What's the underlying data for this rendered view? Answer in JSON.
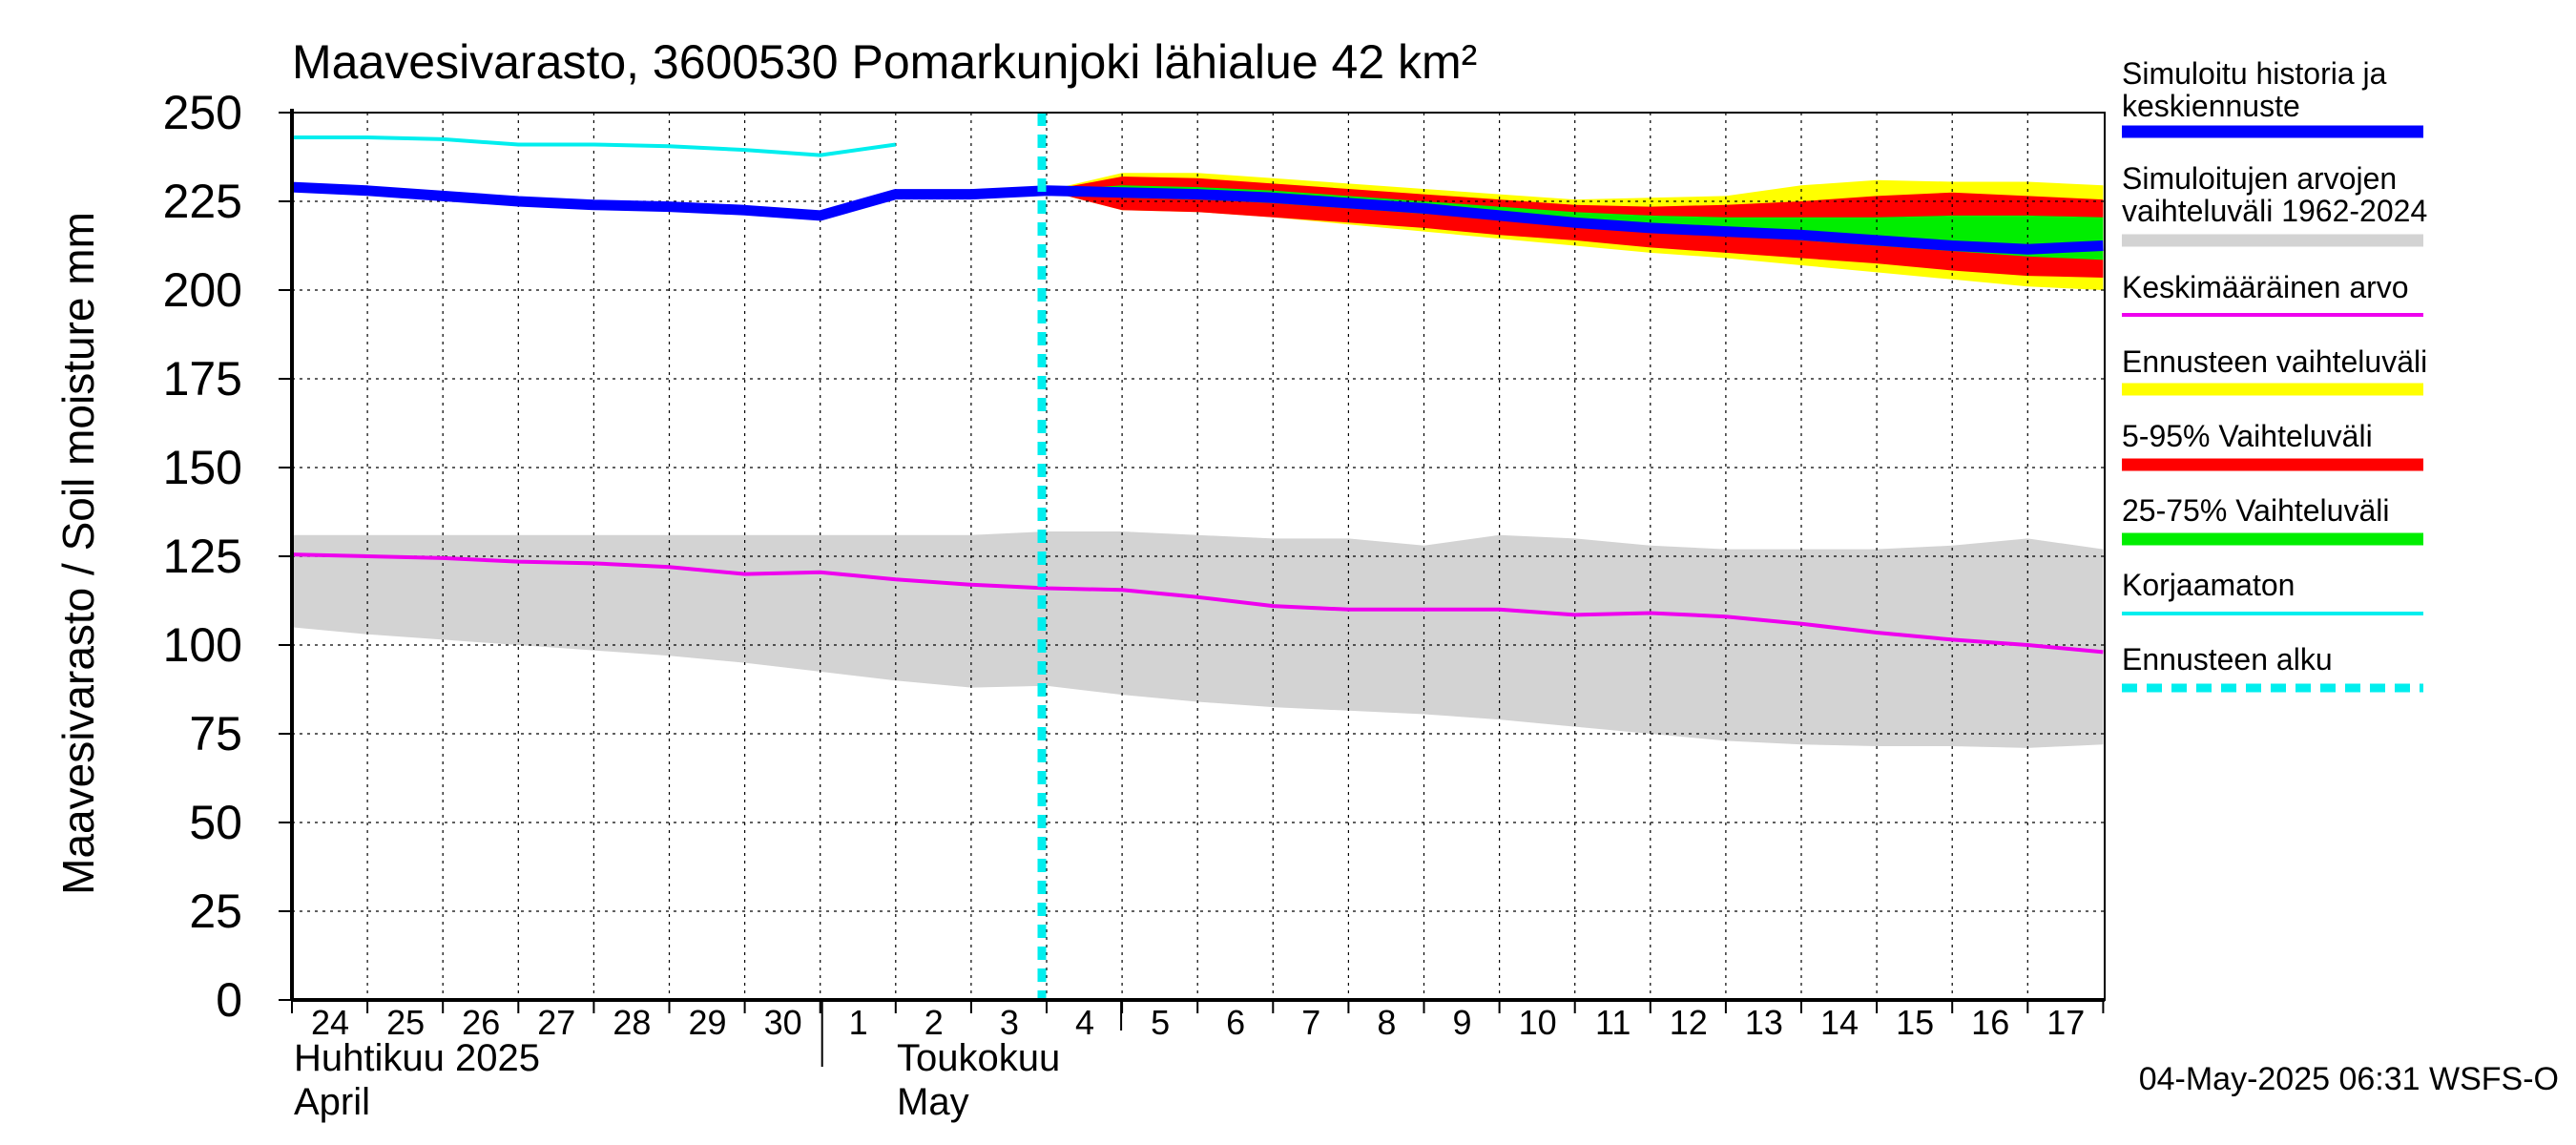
{
  "chart_data": {
    "type": "line",
    "title": "Maavesivarasto, 3600530 Pomarkunjoki lähialue 42 km²",
    "ylabel": "Maavesivarasto / Soil moisture   mm",
    "ylim": [
      0,
      250
    ],
    "yticks": [
      "0",
      "25",
      "50",
      "75",
      "100",
      "125",
      "150",
      "175",
      "200",
      "225",
      "250"
    ],
    "grid": true,
    "legend_position": "right",
    "x_start_day": "2025-04-24",
    "x_end_day": "2025-05-17",
    "xtick_labels": [
      "24",
      "25",
      "26",
      "27",
      "28",
      "29",
      "30",
      "1",
      "2",
      "3",
      "4",
      "5",
      "6",
      "7",
      "8",
      "9",
      "10",
      "11",
      "12",
      "13",
      "14",
      "15",
      "16",
      "17"
    ],
    "month_labels": [
      {
        "fi": "Huhtikuu  2025",
        "en": "April"
      },
      {
        "fi": "Toukokuu",
        "en": "May"
      }
    ],
    "forecast_start": "2025-05-04",
    "footer": "04-May-2025 06:31 WSFS-O",
    "legend": [
      {
        "label": "Simuloitu historia ja keskiennuste",
        "color": "#0000ff",
        "style": "thick"
      },
      {
        "label": "Simuloitujen arvojen vaihteluväli 1962-2024",
        "color": "#d3d3d3",
        "style": "thick"
      },
      {
        "label": "Keskimääräinen arvo",
        "color": "#ee00ee",
        "style": "thin"
      },
      {
        "label": "Ennusteen vaihteluväli",
        "color": "#ffff00",
        "style": "thick"
      },
      {
        "label": "5-95% Vaihteluväli",
        "color": "#ff0000",
        "style": "thick"
      },
      {
        "label": "25-75% Vaihteluväli",
        "color": "#00ee00",
        "style": "thick"
      },
      {
        "label": "Korjaamaton",
        "color": "#00eeee",
        "style": "thin"
      },
      {
        "label": "Ennusteen alku",
        "color": "#00eeee",
        "style": "dashed"
      }
    ],
    "series": [
      {
        "name": "Simuloitu historia ja keskiennuste",
        "color": "#0000ff",
        "x": [
          "2025-04-24",
          "2025-04-25",
          "2025-04-26",
          "2025-04-27",
          "2025-04-28",
          "2025-04-29",
          "2025-04-30",
          "2025-05-01",
          "2025-05-02",
          "2025-05-03",
          "2025-05-04",
          "2025-05-05",
          "2025-05-06",
          "2025-05-07",
          "2025-05-08",
          "2025-05-09",
          "2025-05-10",
          "2025-05-11",
          "2025-05-12",
          "2025-05-13",
          "2025-05-14",
          "2025-05-15",
          "2025-05-16",
          "2025-05-17",
          "2025-05-18"
        ],
        "values": [
          229,
          228,
          226.5,
          225,
          224,
          223.5,
          222.5,
          221,
          227,
          227,
          228,
          227.5,
          227,
          226,
          224.5,
          223,
          221,
          219,
          217.5,
          216.5,
          215.5,
          214,
          212.5,
          211.5,
          212.5
        ]
      },
      {
        "name": "Korjaamaton",
        "color": "#00eeee",
        "x": [
          "2025-04-24",
          "2025-04-25",
          "2025-04-26",
          "2025-04-27",
          "2025-04-28",
          "2025-04-29",
          "2025-04-30",
          "2025-05-01",
          "2025-05-02"
        ],
        "values": [
          243,
          243,
          242.5,
          241,
          241,
          240.5,
          239.5,
          238,
          241
        ]
      },
      {
        "name": "Keskimääräinen arvo",
        "color": "#ee00ee",
        "x": [
          "2025-04-24",
          "2025-04-25",
          "2025-04-26",
          "2025-04-27",
          "2025-04-28",
          "2025-04-29",
          "2025-04-30",
          "2025-05-01",
          "2025-05-02",
          "2025-05-03",
          "2025-05-04",
          "2025-05-05",
          "2025-05-06",
          "2025-05-07",
          "2025-05-08",
          "2025-05-09",
          "2025-05-10",
          "2025-05-11",
          "2025-05-12",
          "2025-05-13",
          "2025-05-14",
          "2025-05-15",
          "2025-05-16",
          "2025-05-17",
          "2025-05-18"
        ],
        "values": [
          125.5,
          125,
          124.5,
          123.5,
          123,
          122,
          120,
          120.5,
          118.5,
          117,
          116,
          115.5,
          113.5,
          111,
          110,
          110,
          110,
          108.5,
          109,
          108,
          106,
          103.5,
          101.5,
          100,
          98
        ]
      }
    ],
    "bands": [
      {
        "name": "Simuloitujen arvojen vaihteluväli 1962-2024",
        "color": "#d3d3d3",
        "x": [
          "2025-04-24",
          "2025-04-25",
          "2025-04-26",
          "2025-04-27",
          "2025-04-28",
          "2025-04-29",
          "2025-04-30",
          "2025-05-01",
          "2025-05-02",
          "2025-05-03",
          "2025-05-04",
          "2025-05-05",
          "2025-05-06",
          "2025-05-07",
          "2025-05-08",
          "2025-05-09",
          "2025-05-10",
          "2025-05-11",
          "2025-05-12",
          "2025-05-13",
          "2025-05-14",
          "2025-05-15",
          "2025-05-16",
          "2025-05-17",
          "2025-05-18"
        ],
        "upper": [
          131,
          131,
          131,
          131,
          131,
          131,
          131,
          131,
          131,
          131,
          132,
          132,
          131,
          130,
          130,
          128,
          131,
          130,
          128,
          127,
          127,
          127,
          128,
          130,
          127
        ],
        "lower": [
          105,
          103,
          101.5,
          100,
          98.5,
          97,
          95,
          92.5,
          90,
          88,
          88.5,
          86,
          84,
          82.5,
          81.5,
          80.5,
          79,
          77,
          75,
          73,
          72,
          71.5,
          71.5,
          71,
          72
        ]
      },
      {
        "name": "Ennusteen vaihteluväli",
        "color": "#ffff00",
        "x": [
          "2025-05-04",
          "2025-05-05",
          "2025-05-06",
          "2025-05-07",
          "2025-05-08",
          "2025-05-09",
          "2025-05-10",
          "2025-05-11",
          "2025-05-12",
          "2025-05-13",
          "2025-05-14",
          "2025-05-15",
          "2025-05-16",
          "2025-05-17",
          "2025-05-18"
        ],
        "upper": [
          228,
          233,
          233,
          231.5,
          230,
          228.5,
          227,
          225.5,
          226,
          226.5,
          229.5,
          231,
          230.5,
          230.5,
          229.5
        ],
        "lower": [
          228,
          222.5,
          222,
          220.5,
          218.5,
          216.5,
          214.5,
          212.5,
          210.5,
          209,
          207,
          205,
          203,
          201,
          200
        ]
      },
      {
        "name": "5-95% Vaihteluväli",
        "color": "#ff0000",
        "x": [
          "2025-05-04",
          "2025-05-05",
          "2025-05-06",
          "2025-05-07",
          "2025-05-08",
          "2025-05-09",
          "2025-05-10",
          "2025-05-11",
          "2025-05-12",
          "2025-05-13",
          "2025-05-14",
          "2025-05-15",
          "2025-05-16",
          "2025-05-17",
          "2025-05-18"
        ],
        "upper": [
          228,
          232,
          231.5,
          230,
          228.5,
          227,
          225.5,
          224,
          223.5,
          224,
          225,
          226.5,
          227.5,
          226.5,
          225.5
        ],
        "lower": [
          228,
          222.5,
          222,
          220.5,
          219,
          217.5,
          215.5,
          214,
          212,
          210.5,
          209,
          207.5,
          205.5,
          204,
          203.5
        ]
      },
      {
        "name": "25-75% Vaihteluväli",
        "color": "#00ee00",
        "x": [
          "2025-05-04",
          "2025-05-05",
          "2025-05-06",
          "2025-05-07",
          "2025-05-08",
          "2025-05-09",
          "2025-05-10",
          "2025-05-11",
          "2025-05-12",
          "2025-05-13",
          "2025-05-14",
          "2025-05-15",
          "2025-05-16",
          "2025-05-17",
          "2025-05-18"
        ],
        "upper": [
          228,
          229.5,
          229,
          228,
          226.5,
          225,
          223.5,
          222,
          221,
          220.5,
          220.5,
          220.5,
          221,
          221,
          220.5
        ],
        "lower": [
          228,
          226,
          225.5,
          224.5,
          223,
          221.5,
          220,
          218,
          216.5,
          215.5,
          214,
          212.5,
          211,
          209.5,
          208.5
        ]
      }
    ]
  }
}
